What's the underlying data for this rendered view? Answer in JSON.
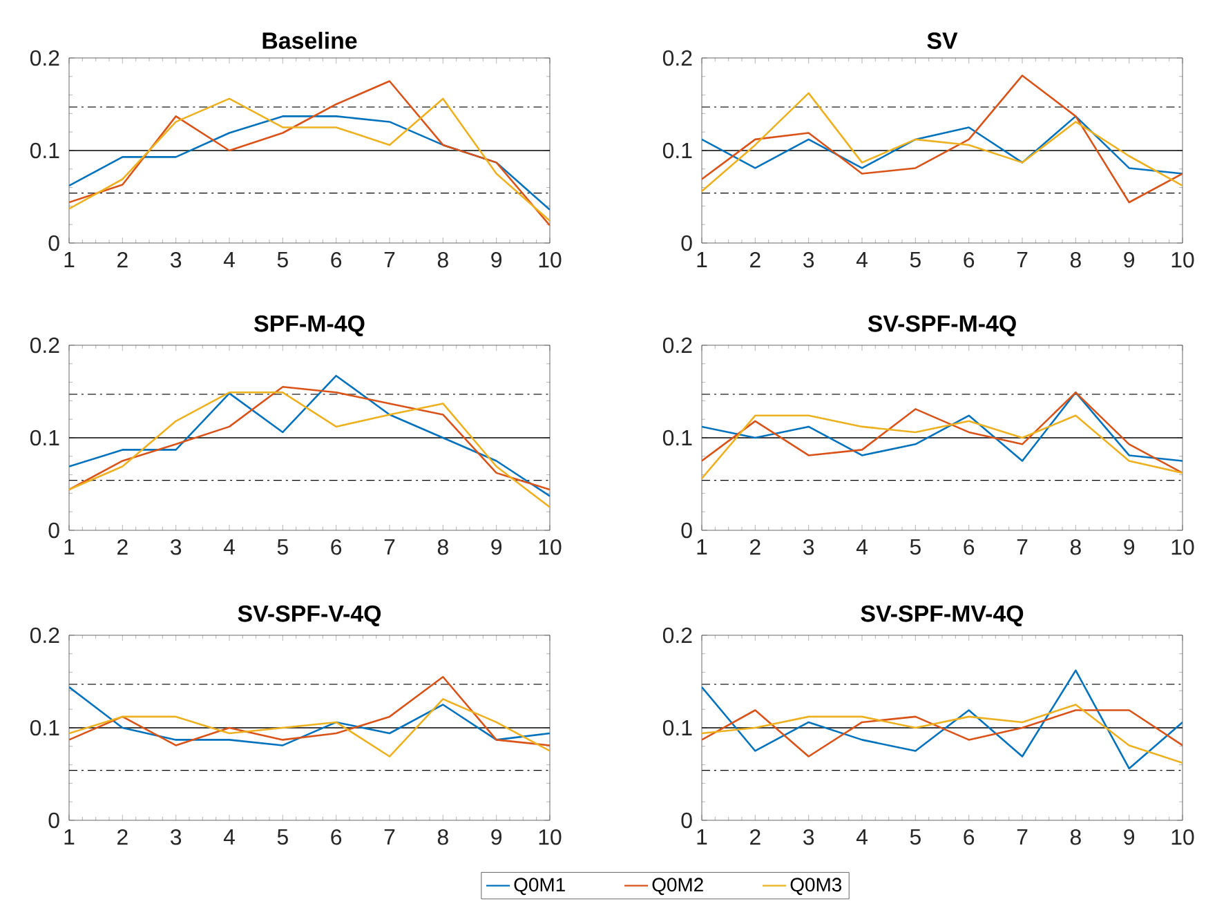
{
  "chart_data": [
    {
      "type": "line",
      "title": "Baseline",
      "x": [
        1,
        2,
        3,
        4,
        5,
        6,
        7,
        8,
        9,
        10
      ],
      "xlim": [
        1,
        10
      ],
      "xticks": [
        1,
        2,
        3,
        4,
        5,
        6,
        7,
        8,
        9,
        10
      ],
      "ylim": [
        0,
        0.2
      ],
      "yticks": [
        0,
        0.1,
        0.2
      ],
      "grid": false,
      "ref_lines": [
        {
          "axis": "y",
          "value": 0.147,
          "line_style": "dashdot",
          "color": "#404040"
        },
        {
          "axis": "y",
          "value": 0.1,
          "line_style": "solid",
          "color": "#000000"
        },
        {
          "axis": "y",
          "value": 0.054,
          "line_style": "dashdot",
          "color": "#000000"
        }
      ],
      "series": [
        {
          "color": "#0072bd",
          "values": [
            0.062,
            0.093,
            0.093,
            0.119,
            0.137,
            0.137,
            0.131,
            0.106,
            0.087,
            0.036
          ]
        },
        {
          "color": "#d95319",
          "values": [
            0.044,
            0.063,
            0.137,
            0.1,
            0.119,
            0.15,
            0.175,
            0.106,
            0.087,
            0.019
          ]
        },
        {
          "color": "#edb120",
          "values": [
            0.037,
            0.069,
            0.131,
            0.156,
            0.125,
            0.125,
            0.106,
            0.156,
            0.075,
            0.024
          ]
        }
      ]
    },
    {
      "type": "line",
      "title": "SV",
      "x": [
        1,
        2,
        3,
        4,
        5,
        6,
        7,
        8,
        9,
        10
      ],
      "xlim": [
        1,
        10
      ],
      "xticks": [
        1,
        2,
        3,
        4,
        5,
        6,
        7,
        8,
        9,
        10
      ],
      "ylim": [
        0,
        0.2
      ],
      "yticks": [
        0,
        0.1,
        0.2
      ],
      "grid": false,
      "ref_lines": [
        {
          "axis": "y",
          "value": 0.147,
          "line_style": "dashdot",
          "color": "#404040"
        },
        {
          "axis": "y",
          "value": 0.1,
          "line_style": "solid",
          "color": "#000000"
        },
        {
          "axis": "y",
          "value": 0.054,
          "line_style": "dashdot",
          "color": "#000000"
        }
      ],
      "series": [
        {
          "color": "#0072bd",
          "values": [
            0.112,
            0.081,
            0.112,
            0.081,
            0.112,
            0.125,
            0.087,
            0.137,
            0.081,
            0.075
          ]
        },
        {
          "color": "#d95319",
          "values": [
            0.069,
            0.112,
            0.119,
            0.075,
            0.081,
            0.112,
            0.181,
            0.137,
            0.044,
            0.075
          ]
        },
        {
          "color": "#edb120",
          "values": [
            0.056,
            0.106,
            0.162,
            0.087,
            0.112,
            0.106,
            0.087,
            0.131,
            0.094,
            0.062
          ]
        }
      ]
    },
    {
      "type": "line",
      "title": "SPF-M-4Q",
      "x": [
        1,
        2,
        3,
        4,
        5,
        6,
        7,
        8,
        9,
        10
      ],
      "xlim": [
        1,
        10
      ],
      "xticks": [
        1,
        2,
        3,
        4,
        5,
        6,
        7,
        8,
        9,
        10
      ],
      "ylim": [
        0,
        0.2
      ],
      "yticks": [
        0,
        0.1,
        0.2
      ],
      "grid": false,
      "ref_lines": [
        {
          "axis": "y",
          "value": 0.147,
          "line_style": "dashdot",
          "color": "#404040"
        },
        {
          "axis": "y",
          "value": 0.1,
          "line_style": "solid",
          "color": "#000000"
        },
        {
          "axis": "y",
          "value": 0.054,
          "line_style": "dashdot",
          "color": "#000000"
        }
      ],
      "series": [
        {
          "color": "#0072bd",
          "values": [
            0.069,
            0.087,
            0.087,
            0.148,
            0.106,
            0.167,
            0.125,
            0.1,
            0.075,
            0.037
          ]
        },
        {
          "color": "#d95319",
          "values": [
            0.044,
            0.075,
            0.093,
            0.112,
            0.155,
            0.149,
            0.137,
            0.125,
            0.062,
            0.044
          ]
        },
        {
          "color": "#edb120",
          "values": [
            0.044,
            0.069,
            0.118,
            0.149,
            0.149,
            0.112,
            0.125,
            0.137,
            0.069,
            0.025
          ]
        }
      ]
    },
    {
      "type": "line",
      "title": "SV-SPF-M-4Q",
      "x": [
        1,
        2,
        3,
        4,
        5,
        6,
        7,
        8,
        9,
        10
      ],
      "xlim": [
        1,
        10
      ],
      "xticks": [
        1,
        2,
        3,
        4,
        5,
        6,
        7,
        8,
        9,
        10
      ],
      "ylim": [
        0,
        0.2
      ],
      "yticks": [
        0,
        0.1,
        0.2
      ],
      "grid": false,
      "ref_lines": [
        {
          "axis": "y",
          "value": 0.147,
          "line_style": "dashdot",
          "color": "#404040"
        },
        {
          "axis": "y",
          "value": 0.1,
          "line_style": "solid",
          "color": "#000000"
        },
        {
          "axis": "y",
          "value": 0.054,
          "line_style": "dashdot",
          "color": "#000000"
        }
      ],
      "series": [
        {
          "color": "#0072bd",
          "values": [
            0.112,
            0.1,
            0.112,
            0.081,
            0.093,
            0.124,
            0.075,
            0.149,
            0.081,
            0.075
          ]
        },
        {
          "color": "#d95319",
          "values": [
            0.075,
            0.118,
            0.081,
            0.087,
            0.131,
            0.106,
            0.093,
            0.149,
            0.093,
            0.062
          ]
        },
        {
          "color": "#edb120",
          "values": [
            0.056,
            0.124,
            0.124,
            0.112,
            0.106,
            0.118,
            0.1,
            0.124,
            0.075,
            0.062
          ]
        }
      ]
    },
    {
      "type": "line",
      "title": "SV-SPF-V-4Q",
      "x": [
        1,
        2,
        3,
        4,
        5,
        6,
        7,
        8,
        9,
        10
      ],
      "xlim": [
        1,
        10
      ],
      "xticks": [
        1,
        2,
        3,
        4,
        5,
        6,
        7,
        8,
        9,
        10
      ],
      "ylim": [
        0,
        0.2
      ],
      "yticks": [
        0,
        0.1,
        0.2
      ],
      "grid": false,
      "legend": "bottom",
      "ref_lines": [
        {
          "axis": "y",
          "value": 0.147,
          "line_style": "dashdot",
          "color": "#404040"
        },
        {
          "axis": "y",
          "value": 0.1,
          "line_style": "solid",
          "color": "#000000"
        },
        {
          "axis": "y",
          "value": 0.054,
          "line_style": "dashdot",
          "color": "#000000"
        }
      ],
      "series": [
        {
          "name": "Q0M1",
          "color": "#0072bd",
          "values": [
            0.144,
            0.1,
            0.087,
            0.087,
            0.081,
            0.106,
            0.094,
            0.125,
            0.087,
            0.094
          ]
        },
        {
          "name": "Q0M2",
          "color": "#d95319",
          "values": [
            0.087,
            0.112,
            0.081,
            0.1,
            0.087,
            0.094,
            0.112,
            0.155,
            0.087,
            0.081
          ]
        },
        {
          "name": "Q0M3",
          "color": "#edb120",
          "values": [
            0.094,
            0.112,
            0.112,
            0.094,
            0.1,
            0.106,
            0.069,
            0.131,
            0.106,
            0.075
          ]
        }
      ]
    },
    {
      "type": "line",
      "title": "SV-SPF-MV-4Q",
      "x": [
        1,
        2,
        3,
        4,
        5,
        6,
        7,
        8,
        9,
        10
      ],
      "xlim": [
        1,
        10
      ],
      "xticks": [
        1,
        2,
        3,
        4,
        5,
        6,
        7,
        8,
        9,
        10
      ],
      "ylim": [
        0,
        0.2
      ],
      "yticks": [
        0,
        0.1,
        0.2
      ],
      "grid": false,
      "ref_lines": [
        {
          "axis": "y",
          "value": 0.147,
          "line_style": "dashdot",
          "color": "#404040"
        },
        {
          "axis": "y",
          "value": 0.1,
          "line_style": "solid",
          "color": "#000000"
        },
        {
          "axis": "y",
          "value": 0.054,
          "line_style": "dashdot",
          "color": "#000000"
        }
      ],
      "series": [
        {
          "color": "#0072bd",
          "values": [
            0.144,
            0.075,
            0.106,
            0.087,
            0.075,
            0.119,
            0.069,
            0.162,
            0.056,
            0.106
          ]
        },
        {
          "color": "#d95319",
          "values": [
            0.087,
            0.119,
            0.069,
            0.106,
            0.112,
            0.087,
            0.1,
            0.119,
            0.119,
            0.081
          ]
        },
        {
          "color": "#edb120",
          "values": [
            0.094,
            0.1,
            0.112,
            0.112,
            0.1,
            0.112,
            0.106,
            0.125,
            0.081,
            0.062
          ]
        }
      ]
    }
  ]
}
